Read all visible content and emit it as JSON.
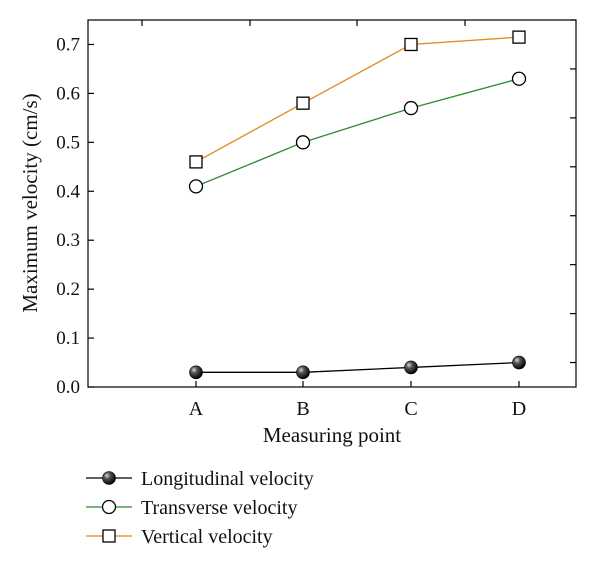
{
  "chart_data": {
    "type": "line",
    "title": "",
    "xlabel": "Measuring point",
    "ylabel": "Maximum velocity (cm/s)",
    "categories": [
      "A",
      "B",
      "C",
      "D"
    ],
    "ylim": [
      0,
      0.75
    ],
    "yticks": [
      "0.0",
      "0.1",
      "0.2",
      "0.3",
      "0.4",
      "0.5",
      "0.6",
      "0.7"
    ],
    "grid": false,
    "legend_position": "bottom-left",
    "series": [
      {
        "name": "Longitudinal velocity",
        "values": [
          0.03,
          0.03,
          0.04,
          0.05
        ],
        "color": "#000000",
        "marker": "filled-sphere"
      },
      {
        "name": "Transverse velocity",
        "values": [
          0.41,
          0.5,
          0.57,
          0.63
        ],
        "color": "#2e8b2e",
        "marker": "open-circle"
      },
      {
        "name": "Vertical velocity",
        "values": [
          0.46,
          0.58,
          0.7,
          0.715
        ],
        "color": "#e08a1e",
        "marker": "open-square"
      }
    ]
  }
}
